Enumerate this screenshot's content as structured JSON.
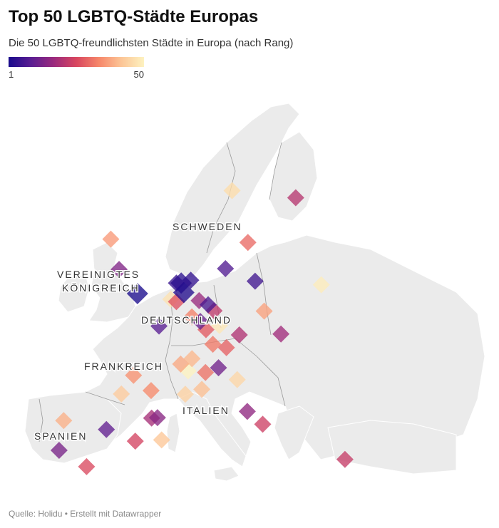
{
  "header": {
    "title": "Top 50 LGBTQ-Städte Europas",
    "subtitle": "Die 50 LGBTQ-freundlichsten Städte in Europa (nach Rang)"
  },
  "legend": {
    "min_label": "1",
    "max_label": "50"
  },
  "country_labels": {
    "sweden": "SCHWEDEN",
    "uk_line1": "VEREINIGTES",
    "uk_line2": "KÖNIGREICH",
    "germany": "DEUTSCHLAND",
    "france": "FRANKREICH",
    "italy": "ITALIEN",
    "spain": "SPANIEN"
  },
  "footer": {
    "source": "Quelle: Holidu • Erstellt mit Datawrapper"
  },
  "colors": {
    "rank_low": "#1a0b8c",
    "rank_high": "#fdf2c0",
    "land": "#ebebeb",
    "border": "#9a9a9a"
  },
  "chart_data": {
    "type": "map-points",
    "color_scale": {
      "min": 1,
      "max": 50
    },
    "points": [
      {
        "lon": -0.13,
        "lat": 51.51,
        "rank": 1
      },
      {
        "lon": 4.35,
        "lat": 52.37,
        "rank": 5
      },
      {
        "lon": 18.07,
        "lat": 59.33,
        "rank": 21
      },
      {
        "lon": 10.75,
        "lat": 59.91,
        "rank": 46
      },
      {
        "lon": 12.57,
        "lat": 55.68,
        "rank": 30
      },
      {
        "lon": -3.19,
        "lat": 55.95,
        "rank": 36
      },
      {
        "lon": -2.24,
        "lat": 53.48,
        "rank": 14
      },
      {
        "lon": 13.4,
        "lat": 52.52,
        "rank": 6
      },
      {
        "lon": 9.99,
        "lat": 53.55,
        "rank": 8
      },
      {
        "lon": 21.01,
        "lat": 52.23,
        "rank": 49
      },
      {
        "lon": 14.44,
        "lat": 50.08,
        "rank": 37
      },
      {
        "lon": 16.37,
        "lat": 48.21,
        "rank": 18
      },
      {
        "lon": 11.58,
        "lat": 48.14,
        "rank": 20
      },
      {
        "lon": 8.68,
        "lat": 50.11,
        "rank": 22
      },
      {
        "lon": 6.96,
        "lat": 50.94,
        "rank": 17
      },
      {
        "lon": 4.9,
        "lat": 52.37,
        "rank": 3
      },
      {
        "lon": 4.35,
        "lat": 50.85,
        "rank": 27
      },
      {
        "lon": 6.13,
        "lat": 49.61,
        "rank": 33
      },
      {
        "lon": 2.35,
        "lat": 48.86,
        "rank": 9
      },
      {
        "lon": 7.75,
        "lat": 48.57,
        "rank": 28
      },
      {
        "lon": 8.54,
        "lat": 47.38,
        "rank": 32
      },
      {
        "lon": 6.14,
        "lat": 46.2,
        "rank": 40
      },
      {
        "lon": 4.84,
        "lat": 45.76,
        "rank": 38
      },
      {
        "lon": 1.44,
        "lat": 43.6,
        "rank": 34
      },
      {
        "lon": -0.58,
        "lat": 44.84,
        "rank": 35
      },
      {
        "lon": 9.19,
        "lat": 45.46,
        "rank": 12
      },
      {
        "lon": 7.69,
        "lat": 45.07,
        "rank": 31
      },
      {
        "lon": 11.34,
        "lat": 44.49,
        "rank": 45
      },
      {
        "lon": 5.37,
        "lat": 43.3,
        "rank": 44
      },
      {
        "lon": 7.27,
        "lat": 43.7,
        "rank": 41
      },
      {
        "lon": 12.5,
        "lat": 41.9,
        "rank": 16
      },
      {
        "lon": 14.27,
        "lat": 40.85,
        "rank": 24
      },
      {
        "lon": 23.73,
        "lat": 37.98,
        "rank": 23
      },
      {
        "lon": -3.7,
        "lat": 40.42,
        "rank": 10
      },
      {
        "lon": 2.17,
        "lat": 41.39,
        "rank": 15
      },
      {
        "lon": 1.5,
        "lat": 41.35,
        "rank": 19
      },
      {
        "lon": -0.38,
        "lat": 39.47,
        "rank": 25
      },
      {
        "lon": -5.98,
        "lat": 37.39,
        "rank": 26
      },
      {
        "lon": -9.14,
        "lat": 38.72,
        "rank": 13
      },
      {
        "lon": -8.61,
        "lat": 41.15,
        "rank": 39
      },
      {
        "lon": 2.65,
        "lat": 39.57,
        "rank": 42
      },
      {
        "lon": -1.98,
        "lat": 43.32,
        "rank": 43
      },
      {
        "lon": 8.0,
        "lat": 50.6,
        "rank": 7
      },
      {
        "lon": 7.1,
        "lat": 49.24,
        "rank": 11
      },
      {
        "lon": 10.1,
        "lat": 47.1,
        "rank": 29
      },
      {
        "lon": 9.3,
        "lat": 48.9,
        "rank": 48
      },
      {
        "lon": 6.0,
        "lat": 52.6,
        "rank": 4
      },
      {
        "lon": 5.2,
        "lat": 51.6,
        "rank": 2
      },
      {
        "lon": 3.7,
        "lat": 51.05,
        "rank": 47
      },
      {
        "lon": 5.7,
        "lat": 45.2,
        "rank": 50
      }
    ]
  }
}
